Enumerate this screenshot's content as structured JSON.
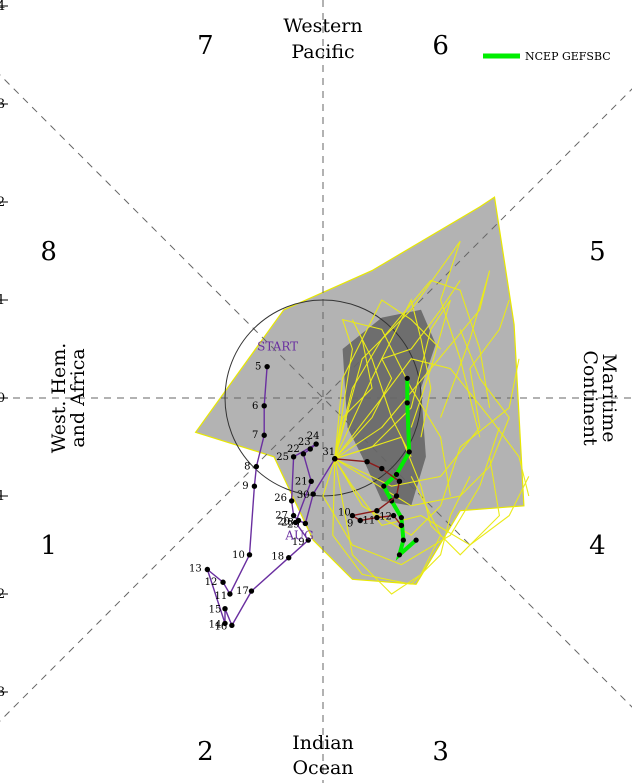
{
  "chart_data": {
    "type": "line",
    "title": "",
    "xlabel": "",
    "ylabel": "",
    "xlim": [
      -3.3,
      3.2
    ],
    "ylim": [
      -3.9,
      4.0
    ],
    "y_tick_labels": [
      "4",
      "3",
      "2",
      "1",
      "0",
      "1",
      "2",
      "3"
    ],
    "y_tick_values": [
      4,
      3,
      2,
      1,
      0,
      -1,
      -2,
      -3
    ],
    "phases": [
      {
        "label": "1",
        "x": -2.8,
        "y": -1.5
      },
      {
        "label": "2",
        "x": -1.2,
        "y": -3.6
      },
      {
        "label": "3",
        "x": 1.2,
        "y": -3.6
      },
      {
        "label": "4",
        "x": 2.8,
        "y": -1.5
      },
      {
        "label": "5",
        "x": 2.8,
        "y": 1.5
      },
      {
        "label": "6",
        "x": 1.2,
        "y": 3.6
      },
      {
        "label": "7",
        "x": -1.2,
        "y": 3.6
      },
      {
        "label": "8",
        "x": -2.8,
        "y": 1.5
      }
    ],
    "regions": {
      "top": [
        "Western",
        "Pacific"
      ],
      "bottom": [
        "Indian",
        "Ocean"
      ],
      "left": [
        "West. Hem.",
        "and Africa"
      ],
      "right": [
        "Maritime",
        "Continent"
      ]
    },
    "observed_track": {
      "color": "#6a2fa0",
      "start_label": "START",
      "end_label": "AUG",
      "points": [
        {
          "day": "5",
          "x": -0.57,
          "y": 0.32
        },
        {
          "day": "6",
          "x": -0.6,
          "y": -0.08
        },
        {
          "day": "7",
          "x": -0.6,
          "y": -0.38
        },
        {
          "day": "8",
          "x": -0.68,
          "y": -0.7
        },
        {
          "day": "9",
          "x": -0.7,
          "y": -0.9
        },
        {
          "day": "10",
          "x": -0.75,
          "y": -1.6
        },
        {
          "day": "11",
          "x": -0.95,
          "y": -2.0
        },
        {
          "day": "12",
          "x": -1.02,
          "y": -1.88
        },
        {
          "day": "13",
          "x": -1.18,
          "y": -1.75
        },
        {
          "day": "14",
          "x": -1.0,
          "y": -2.3
        },
        {
          "day": "15",
          "x": -1.0,
          "y": -2.15
        },
        {
          "day": "16",
          "x": -0.93,
          "y": -2.32
        },
        {
          "day": "17",
          "x": -0.73,
          "y": -1.97
        },
        {
          "day": "18",
          "x": -0.35,
          "y": -1.63
        },
        {
          "day": "19",
          "x": -0.15,
          "y": -1.45
        },
        {
          "day": "20",
          "x": -0.28,
          "y": -1.27
        },
        {
          "day": "21",
          "x": -0.12,
          "y": -0.85
        },
        {
          "day": "22",
          "x": -0.2,
          "y": -0.57
        },
        {
          "day": "23",
          "x": -0.13,
          "y": -0.52
        },
        {
          "day": "24",
          "x": -0.07,
          "y": -0.47
        },
        {
          "day": "25",
          "x": -0.3,
          "y": -0.6
        },
        {
          "day": "26",
          "x": -0.32,
          "y": -1.05
        },
        {
          "day": "27",
          "x": -0.3,
          "y": -1.2
        },
        {
          "day": "28",
          "x": -0.25,
          "y": -1.25
        },
        {
          "day": "29",
          "x": -0.18,
          "y": -1.28
        },
        {
          "day": "30",
          "x": -0.1,
          "y": -0.98
        },
        {
          "day": "31",
          "x": 0.12,
          "y": -0.62
        }
      ]
    },
    "forecast_track": {
      "color": "#8b1a1a",
      "points": [
        {
          "day": "",
          "x": 0.12,
          "y": -0.62
        },
        {
          "day": "",
          "x": 0.45,
          "y": -0.65
        },
        {
          "day": "",
          "x": 0.6,
          "y": -0.72
        },
        {
          "day": "",
          "x": 0.78,
          "y": -0.85
        },
        {
          "day": "",
          "x": 0.75,
          "y": -1.0
        },
        {
          "day": "",
          "x": 0.55,
          "y": -1.15
        },
        {
          "day": "10",
          "x": 0.3,
          "y": -1.2
        },
        {
          "day": "9",
          "x": 0.38,
          "y": -1.25
        },
        {
          "day": "11",
          "x": 0.55,
          "y": -1.22
        },
        {
          "day": "12",
          "x": 0.72,
          "y": -1.2
        },
        {
          "day": "",
          "x": 0.8,
          "y": -1.3
        }
      ]
    },
    "legend": {
      "name": "NCEP GEFSBC",
      "color": "#00ee00",
      "position": "top-right"
    },
    "mean_forecast": [
      {
        "x": 0.86,
        "y": 0.2
      },
      {
        "x": 0.86,
        "y": -0.05
      },
      {
        "x": 0.88,
        "y": -0.55
      },
      {
        "x": 0.75,
        "y": -0.78
      },
      {
        "x": 0.62,
        "y": -0.9
      },
      {
        "x": 0.7,
        "y": -1.05
      },
      {
        "x": 0.8,
        "y": -1.22
      },
      {
        "x": 0.82,
        "y": -1.45
      },
      {
        "x": 0.78,
        "y": -1.6
      },
      {
        "x": 0.95,
        "y": -1.45
      }
    ],
    "ensemble_members": [
      [
        [
          0.12,
          -0.62
        ],
        [
          0.5,
          0.2
        ],
        [
          0.8,
          0.8
        ],
        [
          0.9,
          1.0
        ],
        [
          1.0,
          0.6
        ],
        [
          1.1,
          0.1
        ],
        [
          1.0,
          -0.4
        ]
      ],
      [
        [
          0.12,
          -0.62
        ],
        [
          0.3,
          0.5
        ],
        [
          0.2,
          0.8
        ],
        [
          0.6,
          0.7
        ],
        [
          0.9,
          0.1
        ],
        [
          1.2,
          -0.4
        ],
        [
          1.3,
          -1.0
        ]
      ],
      [
        [
          0.12,
          -0.62
        ],
        [
          0.6,
          -0.3
        ],
        [
          1.1,
          0.3
        ],
        [
          1.6,
          0.9
        ],
        [
          1.7,
          1.3
        ],
        [
          1.5,
          0.6
        ],
        [
          1.2,
          -0.2
        ]
      ],
      [
        [
          0.12,
          -0.62
        ],
        [
          0.4,
          -1.1
        ],
        [
          0.9,
          -1.4
        ],
        [
          1.2,
          -1.1
        ],
        [
          1.4,
          -0.5
        ],
        [
          1.9,
          -0.1
        ],
        [
          2.0,
          0.4
        ]
      ],
      [
        [
          0.12,
          -0.62
        ],
        [
          0.0,
          -1.0
        ],
        [
          0.3,
          -1.5
        ],
        [
          0.8,
          -1.7
        ],
        [
          1.3,
          -1.4
        ],
        [
          1.6,
          -0.9
        ],
        [
          1.8,
          -0.3
        ]
      ],
      [
        [
          0.12,
          -0.62
        ],
        [
          0.3,
          0.1
        ],
        [
          0.6,
          0.6
        ],
        [
          1.1,
          1.2
        ],
        [
          1.4,
          1.1
        ],
        [
          1.6,
          0.5
        ],
        [
          1.7,
          -0.1
        ]
      ],
      [
        [
          0.12,
          -0.62
        ],
        [
          0.5,
          -0.5
        ],
        [
          0.9,
          -0.1
        ],
        [
          1.1,
          0.7
        ],
        [
          1.3,
          1.0
        ],
        [
          1.1,
          0.3
        ],
        [
          0.9,
          -0.3
        ]
      ],
      [
        [
          0.12,
          -0.62
        ],
        [
          0.2,
          0.2
        ],
        [
          0.4,
          0.6
        ],
        [
          0.3,
          0.8
        ],
        [
          0.5,
          0.4
        ],
        [
          0.7,
          -0.2
        ],
        [
          0.9,
          -0.6
        ]
      ],
      [
        [
          0.12,
          -0.62
        ],
        [
          0.7,
          -0.9
        ],
        [
          1.2,
          -0.8
        ],
        [
          1.6,
          -0.3
        ],
        [
          1.5,
          0.3
        ],
        [
          1.8,
          0.7
        ],
        [
          1.9,
          1.0
        ]
      ],
      [
        [
          0.12,
          -0.62
        ],
        [
          0.1,
          -1.4
        ],
        [
          0.4,
          -1.8
        ],
        [
          0.9,
          -1.9
        ],
        [
          1.2,
          -1.6
        ],
        [
          1.3,
          -1.2
        ],
        [
          1.5,
          -0.8
        ]
      ],
      [
        [
          0.12,
          -0.62
        ],
        [
          0.6,
          0.0
        ],
        [
          0.9,
          0.4
        ],
        [
          1.3,
          0.3
        ],
        [
          1.7,
          -0.2
        ],
        [
          2.0,
          -0.6
        ],
        [
          2.1,
          -1.0
        ]
      ],
      [
        [
          0.12,
          -0.62
        ],
        [
          0.4,
          0.4
        ],
        [
          0.9,
          0.9
        ],
        [
          1.4,
          1.6
        ],
        [
          1.2,
          1.0
        ],
        [
          1.4,
          0.4
        ],
        [
          1.6,
          -0.4
        ]
      ],
      [
        [
          0.12,
          -0.62
        ],
        [
          0.8,
          -0.4
        ],
        [
          1.0,
          -0.9
        ],
        [
          1.1,
          -1.3
        ],
        [
          1.4,
          -1.6
        ],
        [
          1.8,
          -1.2
        ],
        [
          1.7,
          -0.6
        ]
      ],
      [
        [
          0.12,
          -0.62
        ],
        [
          0.2,
          -0.2
        ],
        [
          0.5,
          0.1
        ],
        [
          0.4,
          0.6
        ],
        [
          0.6,
          1.0
        ],
        [
          0.9,
          0.8
        ],
        [
          1.2,
          0.5
        ]
      ],
      [
        [
          0.12,
          -0.62
        ],
        [
          0.9,
          -1.1
        ],
        [
          1.4,
          -1.0
        ],
        [
          1.7,
          -0.7
        ],
        [
          1.9,
          -0.2
        ],
        [
          1.6,
          0.2
        ],
        [
          1.4,
          0.7
        ]
      ],
      [
        [
          0.12,
          -0.62
        ],
        [
          0.3,
          -1.6
        ],
        [
          0.7,
          -2.0
        ],
        [
          1.0,
          -1.8
        ],
        [
          1.2,
          -1.4
        ],
        [
          1.0,
          -1.0
        ],
        [
          0.9,
          -0.8
        ]
      ],
      [
        [
          0.12,
          -0.62
        ],
        [
          0.5,
          -0.2
        ],
        [
          0.7,
          0.2
        ],
        [
          0.6,
          0.4
        ],
        [
          0.9,
          0.5
        ],
        [
          1.2,
          0.9
        ],
        [
          1.4,
          1.2
        ]
      ],
      [
        [
          0.12,
          -0.62
        ],
        [
          0.3,
          -0.9
        ],
        [
          0.6,
          -1.3
        ],
        [
          1.0,
          -1.2
        ],
        [
          1.5,
          -1.5
        ],
        [
          1.9,
          -1.2
        ],
        [
          2.1,
          -0.8
        ]
      ]
    ],
    "spread_outer": [
      [
        -1.3,
        -0.35
      ],
      [
        -0.4,
        0.9
      ],
      [
        0.5,
        1.3
      ],
      [
        1.6,
        1.95
      ],
      [
        1.75,
        2.05
      ],
      [
        1.95,
        0.75
      ],
      [
        2.05,
        -1.1
      ],
      [
        1.4,
        -1.15
      ],
      [
        0.95,
        -1.9
      ],
      [
        0.3,
        -1.85
      ],
      [
        -0.1,
        -1.45
      ],
      [
        -0.5,
        -0.6
      ],
      [
        -1.3,
        -0.35
      ]
    ],
    "spread_inner": [
      [
        0.2,
        0.5
      ],
      [
        0.6,
        0.82
      ],
      [
        1.0,
        0.9
      ],
      [
        1.15,
        0.55
      ],
      [
        1.0,
        0.1
      ],
      [
        1.05,
        -0.6
      ],
      [
        0.9,
        -1.1
      ],
      [
        0.6,
        -1.05
      ],
      [
        0.4,
        -0.6
      ],
      [
        0.25,
        -0.3
      ],
      [
        0.2,
        0.5
      ]
    ]
  }
}
